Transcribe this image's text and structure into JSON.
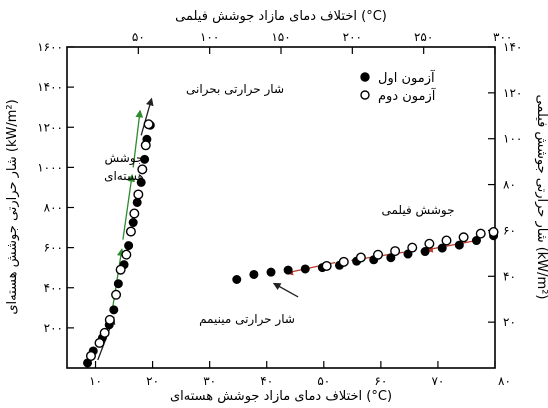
{
  "chart_data": {
    "type": "scatter",
    "top_xlabel": "اختلاف دمای مازاد جوشش فیلمی (°C)",
    "bottom_xlabel": "اختلاف دمای مازاد جوشش هسته‌ای (°C)",
    "left_ylabel": "شار حرارتی جوشش هسته‌ای (kW/m²)",
    "right_ylabel": "شار حرارتی جوشش فیلمی (kW/m²)",
    "bottom_x": {
      "lim": [
        5,
        80
      ],
      "ticks": [
        10,
        20,
        30,
        40,
        50,
        60,
        70,
        80
      ],
      "tick_labels": [
        "۱۰",
        "۲۰",
        "۳۰",
        "۴۰",
        "۵۰",
        "۶۰",
        "۷۰",
        "۸۰"
      ]
    },
    "top_x": {
      "lim": [
        0,
        300
      ],
      "ticks": [
        50,
        100,
        150,
        200,
        250,
        300
      ],
      "tick_labels": [
        "۵۰",
        "۱۰۰",
        "۱۵۰",
        "۲۰۰",
        "۲۵۰",
        "۳۰۰"
      ]
    },
    "left_y": {
      "lim": [
        0,
        1600
      ],
      "ticks": [
        200,
        400,
        600,
        800,
        1000,
        1200,
        1400,
        1600
      ],
      "tick_labels": [
        "۲۰۰",
        "۴۰۰",
        "۶۰۰",
        "۸۰۰",
        "۱۰۰۰",
        "۱۲۰۰",
        "۱۴۰۰",
        "۱۶۰۰"
      ]
    },
    "right_y": {
      "lim": [
        0,
        140
      ],
      "ticks": [
        20,
        40,
        60,
        80,
        100,
        120,
        140
      ],
      "tick_labels": [
        "۲۰",
        "۴۰",
        "۶۰",
        "۸۰",
        "۱۰۰",
        "۱۲۰",
        "۱۴۰"
      ]
    },
    "legend": {
      "position": "top-right",
      "entries": [
        {
          "label": "آزمون اول",
          "marker": "filled-circle"
        },
        {
          "label": "آزمون دوم",
          "marker": "open-circle"
        }
      ]
    },
    "annotations": {
      "critical_heat_flux": "شار حرارتی بحرانی",
      "nucleate_boiling": [
        "جوشش",
        "هسته‌ای"
      ],
      "film_boiling": "جوشش فیلمی",
      "minimum_heat_flux": "شار حرارتی مینیمم"
    },
    "nucleate_series": [
      {
        "name": "آزمون اول",
        "axes": "bottom-left",
        "points": [
          [
            9.2,
            60
          ],
          [
            10.7,
            125
          ],
          [
            11.6,
            175
          ],
          [
            12.5,
            240
          ],
          [
            13.6,
            365
          ],
          [
            14.4,
            490
          ],
          [
            15.4,
            565
          ],
          [
            16.2,
            680
          ],
          [
            16.8,
            770
          ],
          [
            17.5,
            865
          ],
          [
            18.2,
            990
          ],
          [
            18.8,
            1110
          ],
          [
            19.3,
            1215
          ]
        ]
      },
      {
        "name": "آزمون دوم",
        "axes": "bottom-left",
        "points": [
          [
            8.6,
            25
          ],
          [
            9.6,
            85
          ],
          [
            11.2,
            150
          ],
          [
            12.4,
            215
          ],
          [
            13.2,
            290
          ],
          [
            14.0,
            420
          ],
          [
            15.0,
            515
          ],
          [
            15.8,
            610
          ],
          [
            16.6,
            725
          ],
          [
            17.3,
            825
          ],
          [
            18.0,
            925
          ],
          [
            18.6,
            1040
          ],
          [
            19.0,
            1140
          ],
          [
            19.6,
            1210
          ]
        ]
      }
    ],
    "film_series": [
      {
        "name": "آزمون اول",
        "axes": "top-right",
        "points": [
          [
            182,
            44.5
          ],
          [
            194,
            46.3
          ],
          [
            206,
            48.2
          ],
          [
            218,
            49.4
          ],
          [
            230,
            51.0
          ],
          [
            242,
            52.5
          ],
          [
            254,
            54.2
          ],
          [
            266,
            55.6
          ],
          [
            278,
            57.0
          ],
          [
            290,
            58.6
          ],
          [
            299,
            59.3
          ]
        ]
      },
      {
        "name": "آزمون دوم",
        "axes": "top-right",
        "points": [
          [
            119,
            38.6
          ],
          [
            131,
            40.8
          ],
          [
            143,
            41.8
          ],
          [
            155,
            42.7
          ],
          [
            167,
            43.2
          ],
          [
            179,
            43.8
          ],
          [
            191,
            44.8
          ],
          [
            203,
            46.6
          ],
          [
            215,
            47.2
          ],
          [
            227,
            48.1
          ],
          [
            239,
            49.7
          ],
          [
            251,
            50.8
          ],
          [
            263,
            52.3
          ],
          [
            275,
            53.6
          ],
          [
            287,
            55.6
          ],
          [
            299,
            57.7
          ]
        ]
      }
    ]
  }
}
